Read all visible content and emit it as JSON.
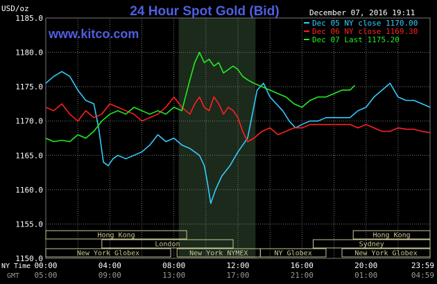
{
  "header": {
    "unit": "USD/oz",
    "title": "24 Hour Spot Gold (Bid)",
    "website": "www.kitco.com",
    "timestamp": "December 07, 2016 19:11"
  },
  "colors": {
    "background": "#000000",
    "title": "#4f5fe0",
    "website": "#4f5fe0",
    "grid": "#7a7a7a",
    "session_shade": "#1c2a1c",
    "market_box": "#c8c896",
    "text": "#ffffff",
    "axis_secondary": "#9a9a9a"
  },
  "chart_data": {
    "type": "line",
    "ylim": [
      1150,
      1185
    ],
    "yticks": [
      "1185.0",
      "1180.0",
      "1175.0",
      "1170.0",
      "1165.0",
      "1160.0",
      "1155.0",
      "1150.0"
    ],
    "ytick_values": [
      1185,
      1180,
      1175,
      1170,
      1165,
      1160,
      1155,
      1150
    ],
    "xlim": [
      0,
      24
    ],
    "xtick_hours": [
      0,
      4,
      8,
      12,
      16,
      20,
      24
    ],
    "xtick_ny": [
      "00:00",
      "04:00",
      "08:00",
      "12:00",
      "16:00",
      "20:00",
      "23:59"
    ],
    "xtick_gmt": [
      "05:00",
      "09:00",
      "13:00",
      "17:00",
      "21:00",
      "01:00",
      "04:59"
    ],
    "ny_time_label": "NY Time",
    "gmt_label": "GMT",
    "shade_range": [
      8.3,
      13.1
    ],
    "grid": true,
    "legend_position": "top-right",
    "series": [
      {
        "name": "Dec 05 NY close 1170.00",
        "color": "#33ccff",
        "x": [
          0,
          0.5,
          1,
          1.5,
          2,
          2.5,
          3,
          3.3,
          3.6,
          3.9,
          4.2,
          4.5,
          5,
          5.5,
          6,
          6.5,
          7,
          7.5,
          8,
          8.5,
          9,
          9.3,
          9.6,
          9.9,
          10.1,
          10.3,
          10.6,
          11,
          11.5,
          12,
          12.3,
          12.6,
          12.9,
          13.2,
          13.6,
          14,
          14.4,
          14.8,
          15.2,
          15.6,
          16,
          16.5,
          17,
          17.5,
          18,
          18.5,
          19,
          19.5,
          20,
          20.5,
          21,
          21.5,
          22,
          22.5,
          23,
          23.5,
          24
        ],
        "values": [
          1175.5,
          1176.5,
          1177.2,
          1176.5,
          1174.5,
          1173.0,
          1172.5,
          1169.0,
          1164.0,
          1163.5,
          1164.5,
          1165.0,
          1164.5,
          1165.0,
          1165.5,
          1166.5,
          1168.0,
          1167.0,
          1167.5,
          1166.5,
          1166.0,
          1165.5,
          1165.0,
          1163.5,
          1161.0,
          1158.0,
          1160.0,
          1162.0,
          1163.5,
          1165.5,
          1166.5,
          1167.5,
          1171.0,
          1174.5,
          1175.5,
          1173.5,
          1172.5,
          1171.5,
          1170.0,
          1169.0,
          1169.5,
          1170.0,
          1170.0,
          1170.5,
          1170.5,
          1170.5,
          1170.5,
          1171.5,
          1172.0,
          1173.5,
          1174.5,
          1175.5,
          1173.5,
          1173.0,
          1173.0,
          1172.5,
          1172.0
        ]
      },
      {
        "name": "Dec 06 NY close 1169.30",
        "color": "#ff2020",
        "x": [
          0,
          0.5,
          1,
          1.5,
          2,
          2.5,
          3,
          3.5,
          4,
          4.5,
          5,
          5.5,
          6,
          6.5,
          7,
          7.5,
          8,
          8.5,
          9,
          9.3,
          9.6,
          9.9,
          10.2,
          10.5,
          10.8,
          11.1,
          11.4,
          11.7,
          12,
          12.3,
          12.6,
          13,
          13.5,
          14,
          14.5,
          15,
          15.5,
          16,
          16.5,
          17,
          17.5,
          18,
          18.5,
          19,
          19.5,
          20,
          20.5,
          21,
          21.5,
          22,
          22.5,
          23,
          23.5,
          24
        ],
        "values": [
          1172.0,
          1171.5,
          1172.5,
          1171.0,
          1170.0,
          1171.5,
          1170.5,
          1171.0,
          1172.5,
          1172.0,
          1171.5,
          1171.0,
          1170.0,
          1170.5,
          1171.0,
          1172.0,
          1173.5,
          1172.0,
          1171.0,
          1172.5,
          1173.5,
          1172.0,
          1171.5,
          1173.5,
          1172.5,
          1171.0,
          1172.0,
          1171.5,
          1170.5,
          1168.5,
          1167.0,
          1167.5,
          1168.5,
          1169.0,
          1168.0,
          1168.5,
          1169.0,
          1169.0,
          1169.5,
          1169.5,
          1169.5,
          1169.5,
          1169.5,
          1169.5,
          1169.0,
          1169.5,
          1169.0,
          1168.5,
          1168.5,
          1169.0,
          1168.8,
          1168.8,
          1168.5,
          1168.3
        ]
      },
      {
        "name": "Dec 07 Last 1175.20",
        "color": "#22ee22",
        "x": [
          0,
          0.5,
          1,
          1.5,
          2,
          2.5,
          3,
          3.5,
          4,
          4.5,
          5,
          5.5,
          6,
          6.5,
          7,
          7.5,
          8,
          8.5,
          9,
          9.3,
          9.6,
          9.9,
          10.2,
          10.5,
          10.8,
          11.1,
          11.4,
          11.7,
          12,
          12.3,
          12.6,
          13,
          13.5,
          14,
          14.5,
          15,
          15.5,
          16,
          16.5,
          17,
          17.5,
          18,
          18.5,
          19,
          19.3
        ],
        "values": [
          1167.5,
          1167.0,
          1167.2,
          1167.0,
          1168.0,
          1167.5,
          1168.5,
          1170.0,
          1171.0,
          1171.5,
          1171.0,
          1172.0,
          1171.5,
          1171.0,
          1171.5,
          1171.0,
          1172.0,
          1171.5,
          1176.0,
          1178.5,
          1180.0,
          1178.5,
          1179.0,
          1178.0,
          1178.5,
          1177.0,
          1177.5,
          1178.0,
          1177.5,
          1176.5,
          1176.0,
          1175.5,
          1175.0,
          1174.5,
          1174.0,
          1173.5,
          1172.5,
          1172.0,
          1173.0,
          1173.5,
          1173.5,
          1174.0,
          1174.5,
          1174.5,
          1175.2
        ]
      }
    ],
    "markets": [
      {
        "name": "Hong Kong",
        "start": 0,
        "end": 8.8,
        "row": 0
      },
      {
        "name": "London",
        "start": 3.5,
        "end": 11.7,
        "row": 1
      },
      {
        "name": "New York Globex",
        "start": 0,
        "end": 7.8,
        "row": 2
      },
      {
        "name": "New York NYMEX",
        "start": 8.2,
        "end": 13.4,
        "row": 2
      },
      {
        "name": "NY Globex",
        "start": 13.4,
        "end": 17.5,
        "row": 2
      },
      {
        "name": "Hong Kong",
        "start": 19.2,
        "end": 24,
        "row": 0
      },
      {
        "name": "Sydney",
        "start": 16.7,
        "end": 24,
        "row": 1
      },
      {
        "name": "New York Globex",
        "start": 18.5,
        "end": 24,
        "row": 2
      }
    ]
  }
}
